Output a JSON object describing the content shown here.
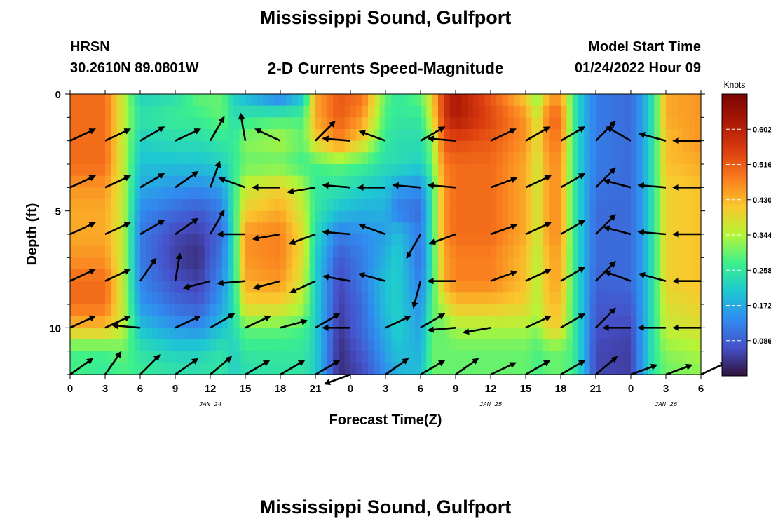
{
  "header": {
    "title": "Mississippi Sound, Gulfport",
    "station_id": "HRSN",
    "station_coords": "30.2610N  89.0801W",
    "subtitle": "2-D Currents Speed-Magnitude",
    "model_start_label": "Model Start Time",
    "model_start_value": "01/24/2022 Hour 09"
  },
  "footer": {
    "title": "Mississippi Sound, Gulfport"
  },
  "chart_data": {
    "type": "heatmap",
    "subtitle": "2-D Currents Speed-Magnitude",
    "xlabel": "Forecast Time(Z)",
    "ylabel": "Depth (ft)",
    "x_range_hours": [
      0,
      54
    ],
    "y_range": [
      0,
      12
    ],
    "x_ticks": [
      "0",
      "3",
      "6",
      "9",
      "12",
      "15",
      "18",
      "21",
      "0",
      "3",
      "6",
      "9",
      "12",
      "15",
      "18",
      "21",
      "0",
      "3",
      "6"
    ],
    "date_labels": [
      {
        "label": "JAN 24",
        "hour": 12
      },
      {
        "label": "JAN 25",
        "hour": 36
      },
      {
        "label": "JAN 26",
        "hour": 51
      }
    ],
    "y_ticks": [
      "0",
      "5",
      "10"
    ],
    "colorbar": {
      "units": "Knots",
      "min": 0.0,
      "max": 0.688,
      "ticks": [
        "0.086",
        "0.172",
        "0.258",
        "0.344",
        "0.430",
        "0.516",
        "0.602"
      ]
    },
    "grid": false,
    "depths": [
      0,
      1,
      2,
      3,
      4,
      5,
      6,
      7,
      8,
      9,
      10,
      11,
      12
    ],
    "time_columns": [
      {
        "h": 0,
        "v": [
          0.5,
          0.5,
          0.5,
          0.5,
          0.46,
          0.44,
          0.44,
          0.46,
          0.5,
          0.5,
          0.42,
          0.28,
          0.28
        ]
      },
      {
        "h": 3,
        "v": [
          0.5,
          0.5,
          0.5,
          0.5,
          0.46,
          0.44,
          0.44,
          0.46,
          0.5,
          0.5,
          0.42,
          0.28,
          0.26
        ]
      },
      {
        "h": 4.5,
        "v": [
          0.36,
          0.36,
          0.36,
          0.36,
          0.36,
          0.36,
          0.36,
          0.36,
          0.36,
          0.36,
          0.36,
          0.3,
          0.28
        ]
      },
      {
        "h": 6,
        "v": [
          0.22,
          0.25,
          0.22,
          0.2,
          0.17,
          0.14,
          0.12,
          0.12,
          0.13,
          0.15,
          0.2,
          0.25,
          0.27
        ]
      },
      {
        "h": 9,
        "v": [
          0.24,
          0.27,
          0.24,
          0.2,
          0.15,
          0.1,
          0.06,
          0.05,
          0.07,
          0.1,
          0.15,
          0.22,
          0.25
        ]
      },
      {
        "h": 11,
        "v": [
          0.3,
          0.27,
          0.24,
          0.2,
          0.14,
          0.08,
          0.05,
          0.03,
          0.05,
          0.08,
          0.14,
          0.22,
          0.25
        ]
      },
      {
        "h": 13,
        "v": [
          0.3,
          0.3,
          0.26,
          0.22,
          0.16,
          0.12,
          0.1,
          0.12,
          0.14,
          0.16,
          0.2,
          0.25,
          0.26
        ]
      },
      {
        "h": 14,
        "v": [
          0.22,
          0.24,
          0.26,
          0.26,
          0.26,
          0.26,
          0.24,
          0.24,
          0.24,
          0.24,
          0.24,
          0.22,
          0.22
        ]
      },
      {
        "h": 15,
        "v": [
          0.18,
          0.26,
          0.32,
          0.3,
          0.36,
          0.4,
          0.46,
          0.46,
          0.44,
          0.4,
          0.3,
          0.26,
          0.24
        ]
      },
      {
        "h": 18,
        "v": [
          0.1,
          0.28,
          0.34,
          0.3,
          0.4,
          0.44,
          0.48,
          0.48,
          0.46,
          0.4,
          0.3,
          0.26,
          0.25
        ]
      },
      {
        "h": 20,
        "v": [
          0.2,
          0.28,
          0.3,
          0.27,
          0.34,
          0.36,
          0.38,
          0.38,
          0.36,
          0.34,
          0.28,
          0.26,
          0.25
        ]
      },
      {
        "h": 21,
        "v": [
          0.44,
          0.44,
          0.4,
          0.28,
          0.26,
          0.26,
          0.24,
          0.22,
          0.22,
          0.22,
          0.22,
          0.22,
          0.22
        ]
      },
      {
        "h": 23,
        "v": [
          0.52,
          0.52,
          0.48,
          0.3,
          0.25,
          0.2,
          0.12,
          0.08,
          0.06,
          0.05,
          0.04,
          0.03,
          0.03
        ]
      },
      {
        "h": 25,
        "v": [
          0.5,
          0.46,
          0.4,
          0.28,
          0.22,
          0.18,
          0.14,
          0.12,
          0.12,
          0.1,
          0.1,
          0.08,
          0.06
        ]
      },
      {
        "h": 27,
        "v": [
          0.3,
          0.28,
          0.26,
          0.24,
          0.2,
          0.18,
          0.16,
          0.18,
          0.2,
          0.2,
          0.18,
          0.16,
          0.14
        ]
      },
      {
        "h": 28,
        "v": [
          0.26,
          0.26,
          0.24,
          0.24,
          0.16,
          0.12,
          0.2,
          0.22,
          0.22,
          0.22,
          0.22,
          0.2,
          0.18
        ]
      },
      {
        "h": 30,
        "v": [
          0.3,
          0.26,
          0.24,
          0.22,
          0.14,
          0.1,
          0.12,
          0.1,
          0.12,
          0.14,
          0.16,
          0.18,
          0.2
        ]
      },
      {
        "h": 31,
        "v": [
          0.4,
          0.38,
          0.32,
          0.3,
          0.26,
          0.26,
          0.26,
          0.26,
          0.26,
          0.28,
          0.3,
          0.3,
          0.3
        ]
      },
      {
        "h": 32,
        "v": [
          0.56,
          0.56,
          0.52,
          0.48,
          0.46,
          0.46,
          0.46,
          0.44,
          0.44,
          0.36,
          0.3,
          0.3,
          0.3
        ]
      },
      {
        "h": 33,
        "v": [
          0.62,
          0.62,
          0.54,
          0.5,
          0.5,
          0.5,
          0.5,
          0.48,
          0.48,
          0.42,
          0.34,
          0.3,
          0.3
        ]
      },
      {
        "h": 36,
        "v": [
          0.52,
          0.54,
          0.52,
          0.5,
          0.5,
          0.5,
          0.5,
          0.48,
          0.48,
          0.42,
          0.34,
          0.3,
          0.3
        ]
      },
      {
        "h": 39,
        "v": [
          0.4,
          0.46,
          0.46,
          0.44,
          0.44,
          0.44,
          0.44,
          0.42,
          0.42,
          0.4,
          0.34,
          0.3,
          0.3
        ]
      },
      {
        "h": 40,
        "v": [
          0.3,
          0.36,
          0.38,
          0.36,
          0.36,
          0.36,
          0.36,
          0.34,
          0.34,
          0.34,
          0.32,
          0.28,
          0.28
        ]
      },
      {
        "h": 41,
        "v": [
          0.44,
          0.5,
          0.48,
          0.46,
          0.46,
          0.46,
          0.46,
          0.44,
          0.44,
          0.42,
          0.4,
          0.3,
          0.3
        ]
      },
      {
        "h": 42,
        "v": [
          0.44,
          0.5,
          0.48,
          0.46,
          0.46,
          0.46,
          0.46,
          0.44,
          0.44,
          0.42,
          0.4,
          0.3,
          0.3
        ]
      },
      {
        "h": 43,
        "v": [
          0.28,
          0.28,
          0.28,
          0.28,
          0.28,
          0.28,
          0.28,
          0.28,
          0.28,
          0.28,
          0.28,
          0.28,
          0.28
        ]
      },
      {
        "h": 44,
        "v": [
          0.18,
          0.18,
          0.18,
          0.18,
          0.18,
          0.18,
          0.18,
          0.18,
          0.18,
          0.18,
          0.18,
          0.18,
          0.18
        ]
      },
      {
        "h": 45,
        "v": [
          0.12,
          0.12,
          0.12,
          0.12,
          0.11,
          0.1,
          0.1,
          0.1,
          0.09,
          0.08,
          0.07,
          0.06,
          0.06
        ]
      },
      {
        "h": 48,
        "v": [
          0.1,
          0.1,
          0.1,
          0.1,
          0.1,
          0.1,
          0.1,
          0.1,
          0.1,
          0.08,
          0.06,
          0.05,
          0.05
        ]
      },
      {
        "h": 49,
        "v": [
          0.16,
          0.16,
          0.16,
          0.16,
          0.16,
          0.16,
          0.16,
          0.16,
          0.16,
          0.16,
          0.16,
          0.16,
          0.16
        ]
      },
      {
        "h": 50,
        "v": [
          0.26,
          0.26,
          0.26,
          0.26,
          0.26,
          0.26,
          0.26,
          0.26,
          0.26,
          0.26,
          0.26,
          0.26,
          0.26
        ]
      },
      {
        "h": 51,
        "v": [
          0.44,
          0.44,
          0.42,
          0.42,
          0.4,
          0.4,
          0.4,
          0.4,
          0.4,
          0.38,
          0.36,
          0.32,
          0.3
        ]
      },
      {
        "h": 54,
        "v": [
          0.46,
          0.46,
          0.46,
          0.44,
          0.42,
          0.42,
          0.42,
          0.42,
          0.42,
          0.4,
          0.38,
          0.34,
          0.32
        ]
      }
    ],
    "vector_times": [
      0,
      3,
      6,
      9,
      12,
      15,
      18,
      21,
      24,
      27,
      30,
      33,
      36,
      39,
      42,
      45,
      48,
      51,
      54
    ],
    "vector_depths": [
      2,
      4,
      6,
      8,
      10,
      12
    ],
    "vector_directions_deg": [
      [
        25,
        25,
        30,
        25,
        60,
        100,
        155,
        45,
        175,
        160,
        30,
        175,
        25,
        30,
        30,
        45,
        150,
        165,
        180
      ],
      [
        25,
        25,
        30,
        35,
        70,
        160,
        180,
        190,
        175,
        180,
        175,
        175,
        20,
        25,
        30,
        45,
        165,
        175,
        180
      ],
      [
        25,
        25,
        30,
        35,
        60,
        180,
        190,
        200,
        175,
        160,
        240,
        200,
        20,
        25,
        30,
        45,
        165,
        175,
        180
      ],
      [
        25,
        25,
        55,
        80,
        195,
        185,
        195,
        205,
        170,
        165,
        255,
        180,
        20,
        25,
        30,
        45,
        160,
        165,
        180
      ],
      [
        25,
        25,
        175,
        25,
        30,
        25,
        15,
        30,
        180,
        25,
        30,
        185,
        190,
        25,
        30,
        45,
        180,
        180,
        180
      ],
      [
        35,
        55,
        45,
        35,
        40,
        30,
        30,
        30,
        200,
        35,
        30,
        35,
        25,
        30,
        30,
        40,
        20,
        20,
        25
      ]
    ]
  }
}
